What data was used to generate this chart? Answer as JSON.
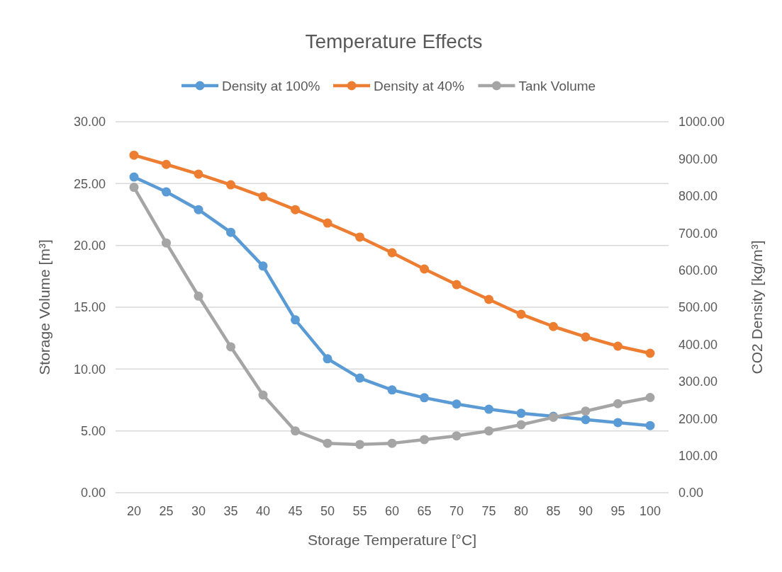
{
  "chart_data": {
    "type": "line",
    "title": "Temperature Effects",
    "xlabel": "Storage Temperature [°C]",
    "ylabel": "Storage Volume [m³]",
    "y2label": "CO2 Density [kg/m³]",
    "categories": [
      "20",
      "25",
      "30",
      "35",
      "40",
      "45",
      "50",
      "55",
      "60",
      "65",
      "70",
      "75",
      "80",
      "85",
      "90",
      "95",
      "100"
    ],
    "series": [
      {
        "name": "Density at 100%",
        "color": "#5b9bd5",
        "axis": "y2",
        "values": [
          851,
          811,
          763,
          702,
          611,
          466,
          361,
          309,
          277,
          256,
          239,
          225,
          214,
          206,
          197,
          189,
          181
        ]
      },
      {
        "name": "Density at 40%",
        "color": "#ed7d31",
        "axis": "y2",
        "values": [
          910,
          885,
          859,
          830,
          798,
          763,
          727,
          689,
          647,
          603,
          561,
          521,
          481,
          448,
          420,
          395,
          376
        ]
      },
      {
        "name": "Tank Volume",
        "color": "#a5a5a5",
        "axis": "y",
        "values": [
          24.7,
          20.2,
          15.9,
          11.8,
          7.9,
          5.0,
          4.0,
          3.9,
          4.0,
          4.3,
          4.6,
          5.0,
          5.5,
          6.1,
          6.6,
          7.2,
          7.7
        ]
      }
    ],
    "ylim": [
      0,
      30
    ],
    "yticks": [
      {
        "value": 0,
        "label": "0.00"
      },
      {
        "value": 5,
        "label": "5.00"
      },
      {
        "value": 10,
        "label": "10.00"
      },
      {
        "value": 15,
        "label": "15.00"
      },
      {
        "value": 20,
        "label": "20.00"
      },
      {
        "value": 25,
        "label": "25.00"
      },
      {
        "value": 30,
        "label": "30.00"
      }
    ],
    "y2lim": [
      0,
      1000
    ],
    "y2ticks": [
      {
        "value": 0,
        "label": "0.00"
      },
      {
        "value": 100,
        "label": "100.00"
      },
      {
        "value": 200,
        "label": "200.00"
      },
      {
        "value": 300,
        "label": "300.00"
      },
      {
        "value": 400,
        "label": "400.00"
      },
      {
        "value": 500,
        "label": "500.00"
      },
      {
        "value": 600,
        "label": "600.00"
      },
      {
        "value": 700,
        "label": "700.00"
      },
      {
        "value": 800,
        "label": "800.00"
      },
      {
        "value": 900,
        "label": "900.00"
      },
      {
        "value": 1000,
        "label": "1000.00"
      }
    ],
    "grid": "y",
    "legend": "top",
    "marker": "circle",
    "line_style": "solid"
  }
}
